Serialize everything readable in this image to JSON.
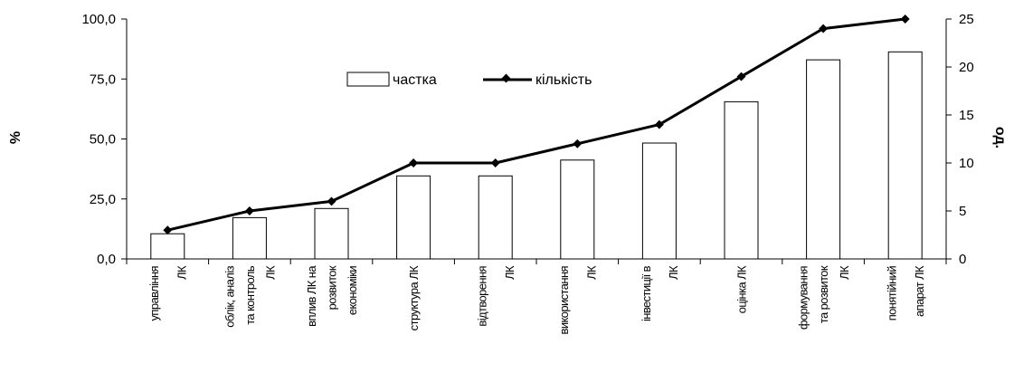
{
  "chart_data": {
    "type": "bar",
    "categories": [
      [
        "управління",
        "ЛК"
      ],
      [
        "облік, аналіз",
        "та контроль",
        "ЛК"
      ],
      [
        "вплив ЛК на",
        "розвиток",
        "економіки"
      ],
      [
        "структура ЛК"
      ],
      [
        "відтворення",
        "ЛК"
      ],
      [
        "використання",
        "ЛК"
      ],
      [
        "інвестиції в",
        "ЛК"
      ],
      [
        "оцінка ЛК"
      ],
      [
        "формування",
        "та розвиток",
        "ЛК"
      ],
      [
        "понятійний",
        "апарат ЛК"
      ]
    ],
    "series": [
      {
        "name": "частка",
        "type": "bar",
        "axis": "left",
        "values": [
          10.5,
          17.2,
          21.0,
          34.6,
          34.6,
          41.2,
          48.3,
          65.5,
          83.0,
          86.3
        ]
      },
      {
        "name": "кількість",
        "type": "line",
        "axis": "right",
        "values": [
          3,
          5,
          6,
          10,
          10,
          12,
          14,
          19,
          24,
          25
        ]
      }
    ],
    "ylabel": "%",
    "y2label": "од.",
    "ylim": [
      0,
      100
    ],
    "y2lim": [
      0,
      25
    ],
    "yticks": [
      "0,0",
      "25,0",
      "50,0",
      "75,0",
      "100,0"
    ],
    "y2ticks": [
      "0",
      "5",
      "10",
      "15",
      "20",
      "25"
    ],
    "legend_position": "top-center",
    "grid": false,
    "colors": {
      "bar_fill": "#ffffff",
      "bar_stroke": "#000000",
      "line": "#000000"
    }
  }
}
